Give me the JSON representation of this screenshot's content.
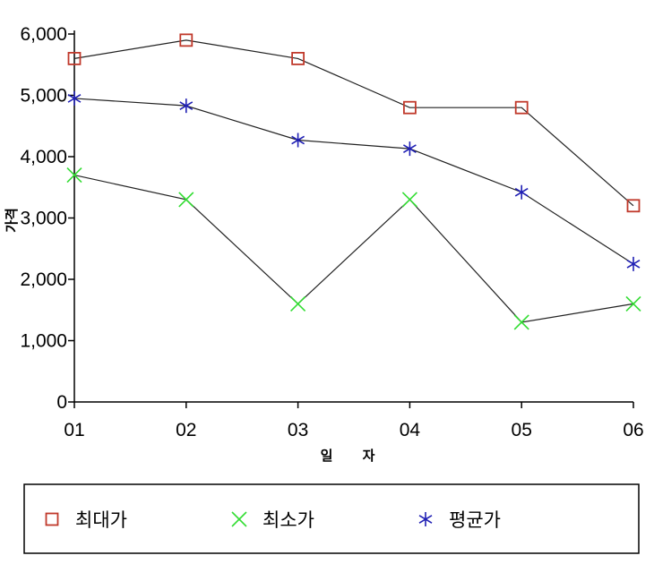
{
  "chart_data": {
    "type": "line",
    "xlabel": "일 자",
    "ylabel": "가격",
    "categories": [
      "01",
      "02",
      "03",
      "04",
      "05",
      "06"
    ],
    "yticks": [
      "0",
      "1,000",
      "2,000",
      "3,000",
      "4,000",
      "5,000",
      "6,000"
    ],
    "ylim": [
      0,
      6000
    ],
    "grid": false,
    "legend_position": "bottom",
    "series": [
      {
        "name": "최대가",
        "marker": "square",
        "color": "#c0392b",
        "values": [
          5600,
          5900,
          5600,
          4800,
          4800,
          3200
        ]
      },
      {
        "name": "최소가",
        "marker": "x",
        "color": "#33dd33",
        "values": [
          3700,
          3300,
          1600,
          3300,
          1300,
          1600
        ]
      },
      {
        "name": "평균가",
        "marker": "asterisk",
        "color": "#1f1fb4",
        "values": [
          4950,
          4830,
          4270,
          4130,
          3420,
          2250
        ]
      }
    ]
  }
}
